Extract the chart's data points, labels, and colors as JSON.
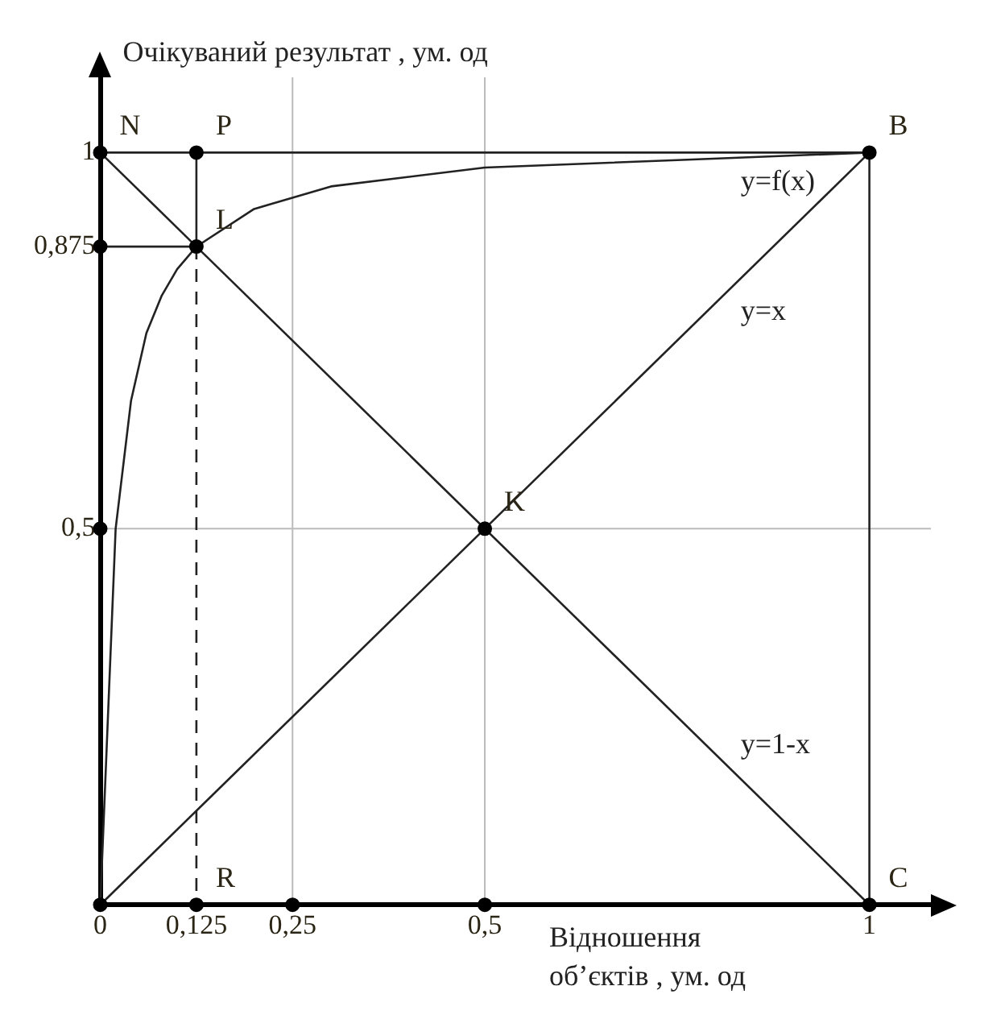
{
  "chart_data": {
    "type": "line",
    "xlabel": "Відношення об’єктів , ум. од",
    "ylabel": "Очікуваний результат , ум. од",
    "xlim": [
      0,
      1.08
    ],
    "ylim": [
      0,
      1.1
    ],
    "xticks": [
      0,
      {
        "value": 0.125,
        "label": "0,125"
      },
      {
        "value": 0.25,
        "label": "0,25"
      },
      {
        "value": 0.5,
        "label": "0,5"
      },
      1
    ],
    "yticks": [
      {
        "value": 0,
        "label": null
      },
      {
        "value": 0.5,
        "label": "0,5"
      },
      {
        "value": 0.875,
        "label": "0,875"
      },
      1
    ],
    "grid": false,
    "legend": false,
    "series": [
      {
        "name": "y=f(x)",
        "type": "line",
        "color": "#222222",
        "x": [
          0,
          0.02,
          0.04,
          0.06,
          0.08,
          0.1,
          0.125,
          0.2,
          0.3,
          0.5,
          0.75,
          1
        ],
        "values": [
          0,
          0.5,
          0.67,
          0.76,
          0.81,
          0.845,
          0.875,
          0.925,
          0.955,
          0.98,
          0.99,
          1
        ]
      },
      {
        "name": "y=x",
        "type": "line",
        "color": "#222222",
        "x": [
          0,
          1
        ],
        "values": [
          0,
          1
        ]
      },
      {
        "name": "y=1-x",
        "type": "line",
        "color": "#222222",
        "x": [
          0,
          1
        ],
        "values": [
          1,
          0
        ]
      },
      {
        "type": "line",
        "color": "#222222",
        "x": [
          0,
          1,
          1
        ],
        "values": [
          1,
          1,
          0
        ]
      },
      {
        "type": "line",
        "color": "#222222",
        "x": [
          0.125,
          0.125
        ],
        "values": [
          1,
          0.875
        ]
      },
      {
        "type": "line",
        "color": "#222222",
        "line_style": "dashed",
        "x": [
          0.125,
          0.125
        ],
        "values": [
          0.875,
          0
        ]
      },
      {
        "type": "line",
        "color": "#222222",
        "x": [
          0,
          0.125
        ],
        "values": [
          0.875,
          0.875
        ]
      },
      {
        "type": "scatter",
        "color": "#000000",
        "marker": "circle",
        "x": [
          0,
          0.125,
          1,
          0,
          0.125,
          0,
          0.5,
          0,
          0.125,
          0.25,
          0.5,
          1
        ],
        "values": [
          1,
          1,
          1,
          0.875,
          0.875,
          0.5,
          0.5,
          0,
          0,
          0,
          0,
          0
        ]
      }
    ],
    "ref_lines": [
      {
        "axis": "x",
        "value": 0.25,
        "color": "#bbbbbb"
      },
      {
        "axis": "x",
        "value": 0.5,
        "color": "#bbbbbb"
      },
      {
        "axis": "y",
        "value": 0.5,
        "color": "#bbbbbb"
      }
    ],
    "annotations": [
      {
        "text": "N",
        "x": 0,
        "y": 1
      },
      {
        "text": "P",
        "x": 0.125,
        "y": 1
      },
      {
        "text": "B",
        "x": 1,
        "y": 1
      },
      {
        "text": "L",
        "x": 0.125,
        "y": 0.875
      },
      {
        "text": "K",
        "x": 0.5,
        "y": 0.5
      },
      {
        "text": "R",
        "x": 0.125,
        "y": 0
      },
      {
        "text": "C",
        "x": 1,
        "y": 0
      }
    ]
  }
}
